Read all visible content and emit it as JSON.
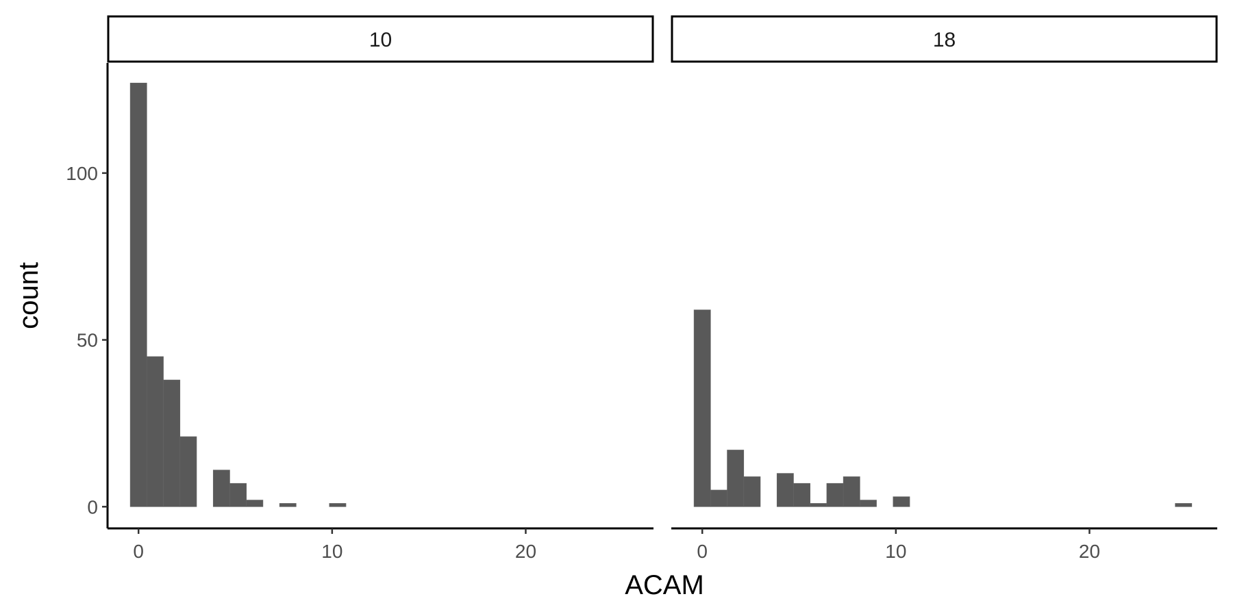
{
  "chart_data": {
    "type": "bar",
    "xlabel": "ACAM",
    "ylabel": "count",
    "xlim": [
      -1.6,
      26.6
    ],
    "ylim": [
      -6.5,
      133
    ],
    "x_ticks": [
      0,
      10,
      20
    ],
    "y_ticks": [
      0,
      50,
      100
    ],
    "bin_width": 0.857,
    "grid": false,
    "bar_color": "#595959",
    "facets": [
      {
        "label": "10",
        "bins": [
          {
            "x": 0.0,
            "count": 127
          },
          {
            "x": 0.857,
            "count": 45
          },
          {
            "x": 1.714,
            "count": 38
          },
          {
            "x": 2.571,
            "count": 21
          },
          {
            "x": 3.429,
            "count": 0
          },
          {
            "x": 4.286,
            "count": 11
          },
          {
            "x": 5.143,
            "count": 7
          },
          {
            "x": 6.0,
            "count": 2
          },
          {
            "x": 6.857,
            "count": 0
          },
          {
            "x": 7.714,
            "count": 1
          },
          {
            "x": 8.571,
            "count": 0
          },
          {
            "x": 9.429,
            "count": 0
          },
          {
            "x": 10.286,
            "count": 1
          }
        ]
      },
      {
        "label": "18",
        "bins": [
          {
            "x": 0.0,
            "count": 59
          },
          {
            "x": 0.857,
            "count": 5
          },
          {
            "x": 1.714,
            "count": 17
          },
          {
            "x": 2.571,
            "count": 9
          },
          {
            "x": 3.429,
            "count": 0
          },
          {
            "x": 4.286,
            "count": 10
          },
          {
            "x": 5.143,
            "count": 7
          },
          {
            "x": 6.0,
            "count": 1
          },
          {
            "x": 6.857,
            "count": 7
          },
          {
            "x": 7.714,
            "count": 9
          },
          {
            "x": 8.571,
            "count": 2
          },
          {
            "x": 9.429,
            "count": 0
          },
          {
            "x": 10.286,
            "count": 3
          },
          {
            "x": 24.857,
            "count": 1
          }
        ]
      }
    ]
  }
}
